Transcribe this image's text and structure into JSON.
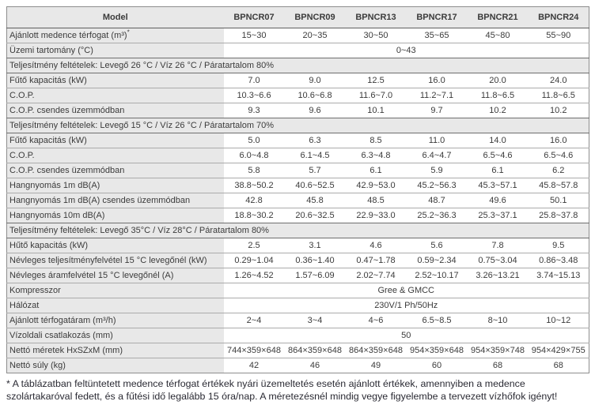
{
  "models": [
    "BPNCR07",
    "BPNCR09",
    "BPNCR13",
    "BPNCR17",
    "BPNCR21",
    "BPNCR24"
  ],
  "table": {
    "header_label": "Model",
    "rows": [
      {
        "type": "data",
        "label": "Ajánlott medence térfogat (m³)",
        "label_suffix": "*",
        "values": [
          "15~30",
          "20~35",
          "30~50",
          "35~65",
          "45~80",
          "55~90"
        ]
      },
      {
        "type": "span",
        "label": "Üzemi tartomány (°C)",
        "value": "0~43"
      },
      {
        "type": "section",
        "label": "Teljesítmény feltételek: Levegő 26 °C / Víz 26 °C / Páratartalom 80%"
      },
      {
        "type": "data",
        "label": "Fűtő kapacitás (kW)",
        "values": [
          "7.0",
          "9.0",
          "12.5",
          "16.0",
          "20.0",
          "24.0"
        ]
      },
      {
        "type": "data",
        "label": "C.O.P.",
        "values": [
          "10.3~6.6",
          "10.6~6.8",
          "11.6~7.0",
          "11.2~7.1",
          "11.8~6.5",
          "11.8~6.5"
        ]
      },
      {
        "type": "data",
        "label": "C.O.P. csendes üzemmódban",
        "values": [
          "9.3",
          "9.6",
          "10.1",
          "9.7",
          "10.2",
          "10.2"
        ]
      },
      {
        "type": "section",
        "label": "Teljesítmény feltételek: Levegő 15 °C / Víz 26 °C / Páratartalom 70%"
      },
      {
        "type": "data",
        "label": "Fűtő kapacitás (kW)",
        "values": [
          "5.0",
          "6.3",
          "8.5",
          "11.0",
          "14.0",
          "16.0"
        ]
      },
      {
        "type": "data",
        "label": "C.O.P.",
        "values": [
          "6.0~4.8",
          "6.1~4.5",
          "6.3~4.8",
          "6.4~4.7",
          "6.5~4.6",
          "6.5~4.6"
        ]
      },
      {
        "type": "data",
        "label": "C.O.P. csendes üzemmódban",
        "values": [
          "5.8",
          "5.7",
          "6.1",
          "5.9",
          "6.1",
          "6.2"
        ]
      },
      {
        "type": "data",
        "label": "Hangnyomás 1m dB(A)",
        "values": [
          "38.8~50.2",
          "40.6~52.5",
          "42.9~53.0",
          "45.2~56.3",
          "45.3~57.1",
          "45.8~57.8"
        ]
      },
      {
        "type": "data",
        "label": "Hangnyomás 1m dB(A) csendes üzemmódban",
        "values": [
          "42.8",
          "45.8",
          "48.5",
          "48.7",
          "49.6",
          "50.1"
        ]
      },
      {
        "type": "data",
        "label": "Hangnyomás 10m dB(A)",
        "values": [
          "18.8~30.2",
          "20.6~32.5",
          "22.9~33.0",
          "25.2~36.3",
          "25.3~37.1",
          "25.8~37.8"
        ]
      },
      {
        "type": "section",
        "label": "Teljesítmény feltételek: Levegő 35°C / Víz 28°C / Páratartalom 80%"
      },
      {
        "type": "data",
        "label": "Hűtő kapacitás (kW)",
        "values": [
          "2.5",
          "3.1",
          "4.6",
          "5.6",
          "7.8",
          "9.5"
        ]
      },
      {
        "type": "data",
        "label": "Névleges teljesítményfelvétel 15 °C levegőnél (kW)",
        "values": [
          "0.29~1.04",
          "0.36~1.40",
          "0.47~1.78",
          "0.59~2.34",
          "0.75~3.04",
          "0.86~3.48"
        ]
      },
      {
        "type": "data",
        "label": "Névleges áramfelvétel 15 °C levegőnél (A)",
        "values": [
          "1.26~4.52",
          "1.57~6.09",
          "2.02~7.74",
          "2.52~10.17",
          "3.26~13.21",
          "3.74~15.13"
        ]
      },
      {
        "type": "span",
        "label": "Kompresszor",
        "value": "Gree & GMCC"
      },
      {
        "type": "span",
        "label": "Hálózat",
        "value": "230V/1 Ph/50Hz"
      },
      {
        "type": "data",
        "label": "Ajánlott térfogatáram (m³/h)",
        "values": [
          "2~4",
          "3~4",
          "4~6",
          "6.5~8.5",
          "8~10",
          "10~12"
        ]
      },
      {
        "type": "span",
        "label": "Vízoldali csatlakozás (mm)",
        "value": "50"
      },
      {
        "type": "data",
        "label": "Nettó méretek HxSZxM (mm)",
        "values": [
          "744×359×648",
          "864×359×648",
          "864×359×648",
          "954×359×648",
          "954×359×748",
          "954×429×755"
        ]
      },
      {
        "type": "data",
        "label": "Nettó súly (kg)",
        "values": [
          "42",
          "46",
          "49",
          "60",
          "68",
          "68"
        ]
      }
    ]
  },
  "footnote": "* A táblázatban feltüntetett medence térfogat értékek nyári üzemeltetés esetén ajánlott értékek, amennyiben a medence szolártakaróval fedett, és a fűtési idő legalább 15 óra/nap. A méretezésnél mindig vegye figyelembe a tervezett vízhőfok igényt!"
}
